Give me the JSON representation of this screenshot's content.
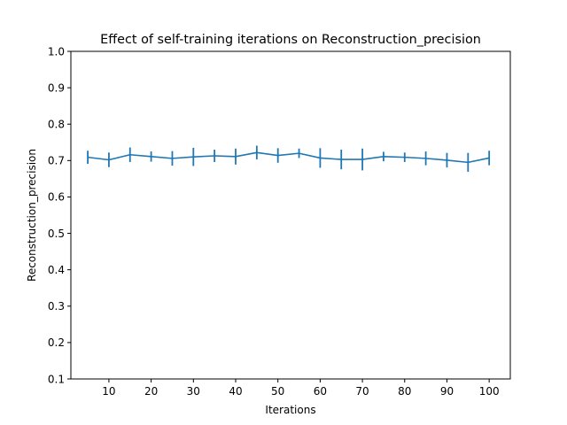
{
  "chart_data": {
    "type": "line",
    "title": "Effect of self-training iterations on Reconstruction_precision",
    "xlabel": "Iterations",
    "ylabel": "Reconstruction_precision",
    "xlim": [
      1,
      105
    ],
    "ylim": [
      0.1,
      1.0
    ],
    "xticks": [
      10,
      20,
      30,
      40,
      50,
      60,
      70,
      80,
      90,
      100
    ],
    "yticks": [
      0.1,
      0.2,
      0.3,
      0.4,
      0.5,
      0.6,
      0.7,
      0.8,
      0.9,
      1.0
    ],
    "grid": false,
    "series": [
      {
        "color": "#1f77b4",
        "x": [
          5,
          10,
          15,
          20,
          25,
          30,
          35,
          40,
          45,
          50,
          55,
          60,
          65,
          70,
          75,
          80,
          85,
          90,
          95,
          100
        ],
        "y": [
          0.709,
          0.702,
          0.716,
          0.711,
          0.706,
          0.71,
          0.713,
          0.711,
          0.722,
          0.714,
          0.72,
          0.707,
          0.703,
          0.703,
          0.711,
          0.709,
          0.706,
          0.701,
          0.695,
          0.707
        ],
        "yerr": [
          0.018,
          0.02,
          0.02,
          0.014,
          0.02,
          0.025,
          0.017,
          0.022,
          0.019,
          0.02,
          0.013,
          0.027,
          0.027,
          0.03,
          0.013,
          0.013,
          0.019,
          0.02,
          0.026,
          0.02
        ]
      }
    ]
  }
}
